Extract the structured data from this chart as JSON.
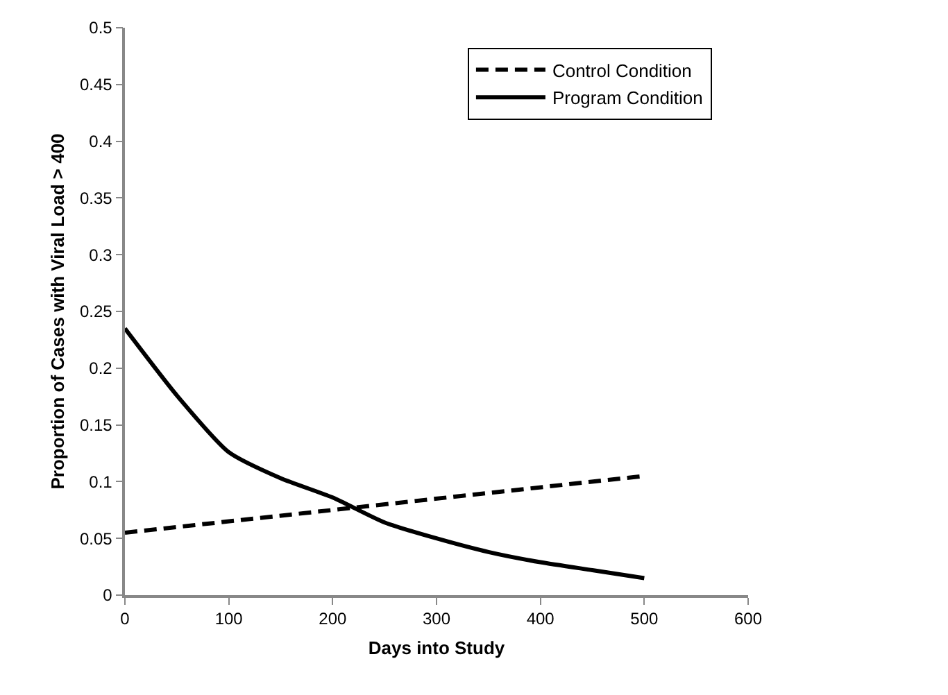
{
  "chart_data": {
    "type": "line",
    "xlabel": "Days into Study",
    "ylabel": "Proportion of Cases with Viral Load > 400",
    "xlim": [
      0,
      600
    ],
    "xticks": [
      0,
      100,
      200,
      300,
      400,
      500,
      600
    ],
    "ylim": [
      0,
      0.5
    ],
    "yticks": [
      0,
      0.05,
      0.1,
      0.15,
      0.2,
      0.25,
      0.3,
      0.35,
      0.4,
      0.45,
      0.5
    ],
    "legend": "top right",
    "marker": "none",
    "series": [
      {
        "name": "Control Condition",
        "color": "#000000",
        "line_style": "dashed",
        "x": [
          0,
          500
        ],
        "values": [
          0.055,
          0.105
        ]
      },
      {
        "name": "Program Condition",
        "color": "#000000",
        "line_style": "solid",
        "x": [
          0,
          50,
          100,
          150,
          200,
          250,
          300,
          350,
          400,
          450,
          500
        ],
        "values": [
          0.235,
          0.176,
          0.126,
          0.103,
          0.086,
          0.064,
          0.05,
          0.038,
          0.029,
          0.022,
          0.015
        ]
      }
    ]
  }
}
